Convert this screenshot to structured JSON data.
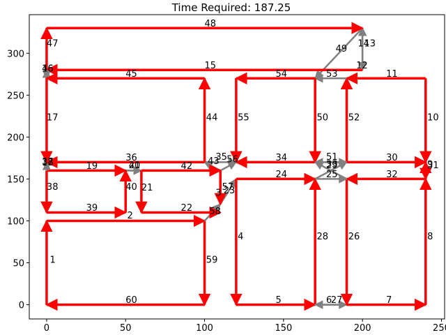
{
  "chart_data": {
    "type": "line",
    "title": "Time Required: 187.25",
    "xlim": [
      -11,
      252
    ],
    "ylim": [
      -17,
      346
    ],
    "xticks": [
      0,
      50,
      100,
      150,
      200,
      250
    ],
    "yticks": [
      0,
      50,
      100,
      150,
      200,
      250,
      300
    ],
    "grid": false,
    "colors": {
      "active": "#ff0000",
      "inactive": "#808080",
      "axis": "#000000"
    },
    "edges": [
      {
        "id": "1",
        "from": [
          0,
          0
        ],
        "to": [
          0,
          100
        ],
        "color": "active"
      },
      {
        "id": "2",
        "from": [
          0,
          100
        ],
        "to": [
          100,
          100
        ],
        "color": "active"
      },
      {
        "id": "59",
        "from": [
          100,
          100
        ],
        "to": [
          100,
          0
        ],
        "color": "active"
      },
      {
        "id": "60",
        "from": [
          100,
          0
        ],
        "to": [
          0,
          0
        ],
        "color": "active"
      },
      {
        "id": "58",
        "from": [
          100,
          100
        ],
        "to": [
          110,
          120
        ],
        "color": "inactive"
      },
      {
        "id": "3",
        "from": [
          110,
          120
        ],
        "to": [
          120,
          150
        ],
        "color": "inactive"
      },
      {
        "id": "4",
        "from": [
          120,
          150
        ],
        "to": [
          120,
          0
        ],
        "color": "active"
      },
      {
        "id": "5",
        "from": [
          120,
          0
        ],
        "to": [
          170,
          0
        ],
        "color": "active"
      },
      {
        "id": "28",
        "from": [
          170,
          0
        ],
        "to": [
          170,
          150
        ],
        "color": "active"
      },
      {
        "id": "6",
        "from": [
          170,
          0
        ],
        "to": [
          190,
          0
        ],
        "color": "inactive"
      },
      {
        "id": "27",
        "from": [
          190,
          0
        ],
        "to": [
          170,
          0
        ],
        "color": "inactive"
      },
      {
        "id": "7",
        "from": [
          190,
          0
        ],
        "to": [
          240,
          0
        ],
        "color": "active"
      },
      {
        "id": "8",
        "from": [
          240,
          0
        ],
        "to": [
          240,
          150
        ],
        "color": "active"
      },
      {
        "id": "32",
        "from": [
          240,
          150
        ],
        "to": [
          190,
          150
        ],
        "color": "active"
      },
      {
        "id": "26",
        "from": [
          190,
          150
        ],
        "to": [
          190,
          0
        ],
        "color": "active"
      },
      {
        "id": "24",
        "from": [
          120,
          150
        ],
        "to": [
          170,
          150
        ],
        "color": "active"
      },
      {
        "id": "25",
        "from": [
          170,
          150
        ],
        "to": [
          190,
          150
        ],
        "color": "inactive"
      },
      {
        "id": "29",
        "from": [
          170,
          170
        ],
        "to": [
          190,
          170
        ],
        "color": "inactive"
      },
      {
        "id": "30",
        "from": [
          190,
          170
        ],
        "to": [
          240,
          170
        ],
        "color": "active"
      },
      {
        "id": "9",
        "from": [
          240,
          150
        ],
        "to": [
          240,
          170
        ],
        "color": "active"
      },
      {
        "id": "10",
        "from": [
          240,
          270
        ],
        "to": [
          240,
          170
        ],
        "color": "active"
      },
      {
        "id": "11",
        "from": [
          240,
          270
        ],
        "to": [
          190,
          270
        ],
        "color": "active"
      },
      {
        "id": "52",
        "from": [
          190,
          170
        ],
        "to": [
          190,
          270
        ],
        "color": "active"
      },
      {
        "id": "53",
        "from": [
          190,
          270
        ],
        "to": [
          170,
          270
        ],
        "color": "inactive"
      },
      {
        "id": "12",
        "from": [
          200,
          280
        ],
        "to": [
          200,
          330
        ],
        "color": "inactive"
      },
      {
        "id": "13",
        "from": [
          200,
          330
        ],
        "to": [
          200,
          280
        ],
        "color": "inactive"
      },
      {
        "id": "14",
        "from": [
          200,
          280
        ],
        "to": [
          200,
          330
        ],
        "color": "inactive"
      },
      {
        "id": "49",
        "from": [
          200,
          330
        ],
        "to": [
          170,
          270
        ],
        "color": "inactive"
      },
      {
        "id": "48",
        "from": [
          0,
          330
        ],
        "to": [
          200,
          330
        ],
        "color": "active"
      },
      {
        "id": "15",
        "from": [
          200,
          280
        ],
        "to": [
          0,
          280
        ],
        "color": "active"
      },
      {
        "id": "46",
        "from": [
          0,
          280
        ],
        "to": [
          0,
          270
        ],
        "color": "inactive"
      },
      {
        "id": "47",
        "from": [
          0,
          270
        ],
        "to": [
          0,
          330
        ],
        "color": "active"
      },
      {
        "id": "16",
        "from": [
          0,
          270
        ],
        "to": [
          0,
          280
        ],
        "color": "inactive"
      },
      {
        "id": "50",
        "from": [
          170,
          270
        ],
        "to": [
          170,
          170
        ],
        "color": "active"
      },
      {
        "id": "54",
        "from": [
          170,
          270
        ],
        "to": [
          120,
          270
        ],
        "color": "active"
      },
      {
        "id": "55",
        "from": [
          120,
          270
        ],
        "to": [
          120,
          170
        ],
        "color": "active"
      },
      {
        "id": "34",
        "from": [
          170,
          170
        ],
        "to": [
          120,
          170
        ],
        "color": "active"
      },
      {
        "id": "56",
        "from": [
          110,
          160
        ],
        "to": [
          120,
          170
        ],
        "color": "inactive"
      },
      {
        "id": "33",
        "from": [
          190,
          170
        ],
        "to": [
          170,
          170
        ],
        "color": "inactive"
      },
      {
        "id": "51",
        "from": [
          170,
          150
        ],
        "to": [
          190,
          170
        ],
        "color": "inactive"
      },
      {
        "id": "23",
        "from": [
          190,
          150
        ],
        "to": [
          170,
          170
        ],
        "color": "inactive"
      },
      {
        "id": "31",
        "from": [
          240,
          170
        ],
        "to": [
          240,
          150
        ],
        "color": "active"
      },
      {
        "id": "35",
        "from": [
          100,
          170
        ],
        "to": [
          120,
          170
        ],
        "color": "inactive"
      },
      {
        "id": "43",
        "from": [
          110,
          160
        ],
        "to": [
          100,
          170
        ],
        "color": "inactive"
      },
      {
        "id": "57",
        "from": [
          110,
          160
        ],
        "to": [
          110,
          120
        ],
        "color": "active"
      },
      {
        "id": "42",
        "from": [
          60,
          160
        ],
        "to": [
          110,
          160
        ],
        "color": "active"
      },
      {
        "id": "41",
        "from": [
          50,
          160
        ],
        "to": [
          60,
          160
        ],
        "color": "inactive"
      },
      {
        "id": "20",
        "from": [
          50,
          160
        ],
        "to": [
          60,
          160
        ],
        "color": "inactive"
      },
      {
        "id": "21",
        "from": [
          60,
          160
        ],
        "to": [
          60,
          110
        ],
        "color": "active"
      },
      {
        "id": "22",
        "from": [
          60,
          110
        ],
        "to": [
          110,
          110
        ],
        "color": "active"
      },
      {
        "id": "40",
        "from": [
          50,
          110
        ],
        "to": [
          50,
          160
        ],
        "color": "active"
      },
      {
        "id": "39",
        "from": [
          0,
          110
        ],
        "to": [
          50,
          110
        ],
        "color": "active"
      },
      {
        "id": "38",
        "from": [
          0,
          160
        ],
        "to": [
          0,
          110
        ],
        "color": "active"
      },
      {
        "id": "19",
        "from": [
          0,
          160
        ],
        "to": [
          50,
          160
        ],
        "color": "active"
      },
      {
        "id": "18",
        "from": [
          0,
          170
        ],
        "to": [
          0,
          160
        ],
        "color": "inactive"
      },
      {
        "id": "37",
        "from": [
          0,
          160
        ],
        "to": [
          0,
          170
        ],
        "color": "inactive"
      },
      {
        "id": "17",
        "from": [
          0,
          270
        ],
        "to": [
          0,
          170
        ],
        "color": "active"
      },
      {
        "id": "36",
        "from": [
          100,
          170
        ],
        "to": [
          0,
          170
        ],
        "color": "active"
      },
      {
        "id": "44",
        "from": [
          100,
          170
        ],
        "to": [
          100,
          270
        ],
        "color": "active"
      },
      {
        "id": "45",
        "from": [
          100,
          270
        ],
        "to": [
          0,
          270
        ],
        "color": "active"
      }
    ],
    "edge_labels": [
      {
        "text": "1",
        "x": 2,
        "y": 50
      },
      {
        "text": "2",
        "x": 51,
        "y": 103
      },
      {
        "text": "3",
        "x": 107,
        "y": 130
      },
      {
        "text": "4",
        "x": 121,
        "y": 78
      },
      {
        "text": "5",
        "x": 145,
        "y": 2
      },
      {
        "text": "6",
        "x": 177,
        "y": 2
      },
      {
        "text": "7",
        "x": 215,
        "y": 2
      },
      {
        "text": "8",
        "x": 241,
        "y": 78
      },
      {
        "text": "9",
        "x": 241,
        "y": 164
      },
      {
        "text": "10",
        "x": 241,
        "y": 220
      },
      {
        "text": "11",
        "x": 215,
        "y": 272
      },
      {
        "text": "12",
        "x": 196,
        "y": 282
      },
      {
        "text": "13",
        "x": 201,
        "y": 308
      },
      {
        "text": "14",
        "x": 197,
        "y": 308
      },
      {
        "text": "15",
        "x": 100,
        "y": 282
      },
      {
        "text": "16",
        "x": -3,
        "y": 278
      },
      {
        "text": "17",
        "x": 0,
        "y": 220
      },
      {
        "text": "18",
        "x": -3,
        "y": 166
      },
      {
        "text": "19",
        "x": 25,
        "y": 162
      },
      {
        "text": "20",
        "x": 52,
        "y": 163
      },
      {
        "text": "21",
        "x": 60,
        "y": 136
      },
      {
        "text": "22",
        "x": 85,
        "y": 112
      },
      {
        "text": "23",
        "x": 112,
        "y": 133
      },
      {
        "text": "24",
        "x": 145,
        "y": 152
      },
      {
        "text": "25",
        "x": 177,
        "y": 152
      },
      {
        "text": "26",
        "x": 191,
        "y": 78
      },
      {
        "text": "27",
        "x": 180,
        "y": 2
      },
      {
        "text": "28",
        "x": 171,
        "y": 78
      },
      {
        "text": "29",
        "x": 177,
        "y": 163
      },
      {
        "text": "30",
        "x": 215,
        "y": 172
      },
      {
        "text": "31",
        "x": 241,
        "y": 163
      },
      {
        "text": "32",
        "x": 215,
        "y": 152
      },
      {
        "text": "33",
        "x": 177,
        "y": 164
      },
      {
        "text": "34",
        "x": 145,
        "y": 172
      },
      {
        "text": "35",
        "x": 107,
        "y": 173
      },
      {
        "text": "36",
        "x": 50,
        "y": 172
      },
      {
        "text": "37",
        "x": -3,
        "y": 167
      },
      {
        "text": "38",
        "x": 0,
        "y": 137
      },
      {
        "text": "39",
        "x": 25,
        "y": 112
      },
      {
        "text": "40",
        "x": 50,
        "y": 137
      },
      {
        "text": "41",
        "x": 52,
        "y": 163
      },
      {
        "text": "42",
        "x": 85,
        "y": 162
      },
      {
        "text": "43",
        "x": 102,
        "y": 168
      },
      {
        "text": "44",
        "x": 101,
        "y": 220
      },
      {
        "text": "45",
        "x": 50,
        "y": 272
      },
      {
        "text": "46",
        "x": -3,
        "y": 278
      },
      {
        "text": "47",
        "x": 0,
        "y": 308
      },
      {
        "text": "48",
        "x": 100,
        "y": 332
      },
      {
        "text": "49",
        "x": 183,
        "y": 302
      },
      {
        "text": "50",
        "x": 171,
        "y": 220
      },
      {
        "text": "51",
        "x": 177,
        "y": 173
      },
      {
        "text": "52",
        "x": 191,
        "y": 220
      },
      {
        "text": "53",
        "x": 177,
        "y": 272
      },
      {
        "text": "54",
        "x": 145,
        "y": 272
      },
      {
        "text": "55",
        "x": 121,
        "y": 220
      },
      {
        "text": "56",
        "x": 114,
        "y": 170
      },
      {
        "text": "57",
        "x": 111,
        "y": 137
      },
      {
        "text": "58",
        "x": 103,
        "y": 108
      },
      {
        "text": "59",
        "x": 101,
        "y": 50
      },
      {
        "text": "60",
        "x": 50,
        "y": 2
      }
    ]
  }
}
